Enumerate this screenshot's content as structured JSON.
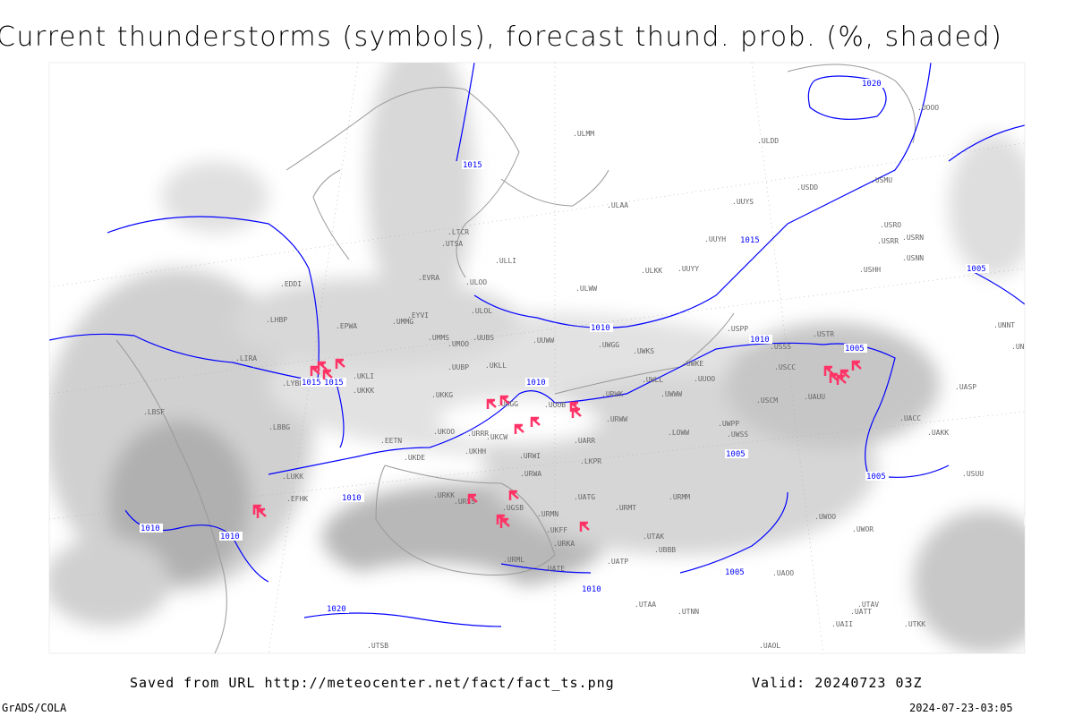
{
  "title": "Current thunderstorms (symbols), forecast thund. prob. (%, shaded)",
  "footer": {
    "saved_from": "Saved from URL http://meteocenter.net/fact/fact_ts.png",
    "valid": "Valid: 20240723 03Z",
    "software": "GrADS/COLA",
    "timestamp": "2024-07-23-03:05"
  },
  "colors": {
    "isobar": "#0000ff",
    "thunderstorm_symbol": "#ff3366",
    "shading": "#a0a0a0",
    "coastline": "#888888"
  },
  "legend_symbols": {
    "thunderstorm": "thunderstorm-symbol"
  },
  "isobar_labels": [
    "1020",
    "1015",
    "1015",
    "1015",
    "1015",
    "1010",
    "1010",
    "1010",
    "1010",
    "1010",
    "1010",
    "1005",
    "1005",
    "1005",
    "1005",
    "1020",
    "1015",
    "1010",
    "1005"
  ],
  "stations": [
    "ULMM",
    "ULAA",
    "ULOO",
    "ULLI",
    "ULOL",
    "ULWW",
    "ULKK",
    "UUYY",
    "UUYH",
    "UUYS",
    "ULDD",
    "USDD",
    "USMU",
    "UOOO",
    "USRO",
    "USRN",
    "USRR",
    "USNN",
    "USHH",
    "USPP",
    "USSS",
    "USTR",
    "USCC",
    "USCM",
    "UAUU",
    "UACC",
    "UAKK",
    "UASP",
    "USUU",
    "UNNT",
    "UNBB",
    "EVRA",
    "EYVI",
    "EPWA",
    "EDDI",
    "UMMG",
    "UMMS",
    "UMOO",
    "UUBS",
    "UUWW",
    "UWGG",
    "UWKS",
    "UWKE",
    "UWLL",
    "UWWW",
    "UUOO",
    "UUOB",
    "UMGG",
    "UUBP",
    "UKLL",
    "UKLI",
    "UKKK",
    "UKKG",
    "UKOO",
    "UKDE",
    "UKHH",
    "UKCW",
    "URRR",
    "URWI",
    "URWA",
    "UATG",
    "URMT",
    "URMM",
    "URMN",
    "UKFF",
    "URKA",
    "URKK",
    "URSS",
    "UGSB",
    "URML",
    "UATE",
    "UATP",
    "UBBB",
    "UTAK",
    "UTAA",
    "UTNN",
    "UAOL",
    "UAOO",
    "UWOO",
    "UWOR",
    "UWPP",
    "UWSS",
    "URWK",
    "URWW",
    "UARR",
    "LKPR",
    "LOWW",
    "LHBP",
    "LIRA",
    "LYBE",
    "LBSF",
    "LBBG",
    "LUKK",
    "EFHK",
    "EETN",
    "LTCR",
    "UTSA",
    "UTSB",
    "UTAV",
    "UATT",
    "UAII",
    "UTKK"
  ]
}
